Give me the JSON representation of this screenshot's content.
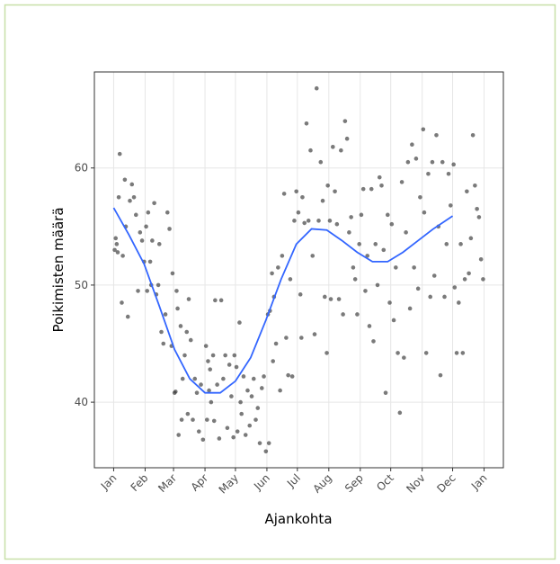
{
  "chart_data": {
    "type": "scatter",
    "x_label": "Ajankohta",
    "y_label": "Poikimisten määrä",
    "xlim": [
      -19,
      384
    ],
    "ylim": [
      34.4,
      68.2
    ],
    "xticks": [
      {
        "value": 0,
        "label": "Jan"
      },
      {
        "value": 31,
        "label": "Feb"
      },
      {
        "value": 59,
        "label": "Mar"
      },
      {
        "value": 90,
        "label": "Apr"
      },
      {
        "value": 120,
        "label": "May"
      },
      {
        "value": 151,
        "label": "Jun"
      },
      {
        "value": 181,
        "label": "Jul"
      },
      {
        "value": 212,
        "label": "Aug"
      },
      {
        "value": 243,
        "label": "Sep"
      },
      {
        "value": 273,
        "label": "Oct"
      },
      {
        "value": 304,
        "label": "Nov"
      },
      {
        "value": 334,
        "label": "Dec"
      },
      {
        "value": 365,
        "label": "Jan"
      }
    ],
    "yticks": [
      40,
      50,
      60
    ],
    "grid": true,
    "points": {
      "color": "#333333",
      "x": [
        1,
        2,
        3,
        4,
        5,
        6,
        8,
        9,
        11,
        12,
        14,
        16,
        18,
        20,
        22,
        24,
        26,
        28,
        30,
        32,
        33,
        34,
        36,
        37,
        38,
        40,
        42,
        44,
        45,
        47,
        49,
        51,
        53,
        55,
        57,
        58,
        60,
        61,
        62,
        63,
        64,
        66,
        67,
        68,
        70,
        72,
        73,
        74,
        76,
        78,
        80,
        82,
        84,
        86,
        88,
        91,
        92,
        93,
        94,
        95,
        96,
        98,
        99,
        100,
        102,
        104,
        106,
        108,
        110,
        112,
        114,
        116,
        118,
        119,
        121,
        122,
        124,
        125,
        126,
        128,
        130,
        132,
        134,
        136,
        138,
        140,
        142,
        144,
        146,
        148,
        150,
        152,
        153,
        154,
        156,
        157,
        158,
        160,
        162,
        164,
        166,
        168,
        170,
        172,
        174,
        176,
        178,
        180,
        182,
        184,
        185,
        186,
        188,
        190,
        192,
        194,
        196,
        198,
        200,
        202,
        204,
        206,
        208,
        210,
        211,
        213,
        214,
        216,
        218,
        220,
        222,
        224,
        226,
        228,
        230,
        232,
        234,
        236,
        238,
        240,
        242,
        244,
        246,
        248,
        250,
        252,
        254,
        256,
        258,
        260,
        262,
        264,
        266,
        268,
        270,
        272,
        274,
        276,
        278,
        280,
        282,
        284,
        286,
        288,
        290,
        292,
        294,
        296,
        298,
        300,
        302,
        305,
        306,
        308,
        310,
        312,
        314,
        316,
        318,
        320,
        322,
        324,
        326,
        328,
        330,
        332,
        335,
        336,
        338,
        340,
        342,
        344,
        346,
        348,
        350,
        352,
        354,
        356,
        358,
        360,
        362,
        364
      ],
      "y": [
        53,
        54,
        53.5,
        52.8,
        57.5,
        61.2,
        48.5,
        52.5,
        59,
        55,
        47.3,
        57.2,
        58.6,
        57.5,
        56,
        49.5,
        54.5,
        53.8,
        52,
        55,
        49.5,
        56.2,
        52,
        50,
        53.8,
        57,
        49.2,
        50,
        53.5,
        46,
        45,
        47.5,
        56.2,
        54.8,
        44.8,
        51,
        40.8,
        40.9,
        49.5,
        48,
        37.2,
        46.5,
        38.5,
        42,
        44,
        46,
        39,
        48.8,
        45.3,
        38.5,
        42,
        40.8,
        37.5,
        41.5,
        36.8,
        44.8,
        38.5,
        43.5,
        41,
        42.8,
        40,
        44,
        38.4,
        48.7,
        41.5,
        36.9,
        48.7,
        42,
        44,
        37.8,
        43.2,
        40.5,
        37,
        44,
        43,
        37.5,
        46.8,
        40,
        39,
        42.2,
        37.2,
        41,
        38,
        40.5,
        42,
        38.5,
        39.5,
        36.5,
        41.2,
        42.2,
        35.8,
        47.5,
        36.5,
        47.8,
        51,
        43.5,
        49,
        45,
        51.5,
        41,
        52.5,
        57.8,
        45.5,
        42.3,
        50.5,
        42.2,
        55.5,
        58,
        56.2,
        49.2,
        45.5,
        57.5,
        55.3,
        63.8,
        55.5,
        61.5,
        52.5,
        45.8,
        66.8,
        55.5,
        60.5,
        57.2,
        49,
        44.2,
        58.5,
        55.5,
        48.8,
        61.8,
        58,
        55.2,
        48.8,
        61.5,
        47.5,
        64,
        62.5,
        54.5,
        55.8,
        51.5,
        50.5,
        47.5,
        53.5,
        56,
        58.2,
        49.5,
        52.5,
        46.5,
        58.2,
        45.2,
        53.5,
        50,
        59.2,
        58.5,
        53,
        40.8,
        56,
        48.5,
        55.2,
        47,
        51.5,
        44.2,
        39.1,
        58.8,
        43.8,
        54.5,
        60.5,
        48,
        62,
        51.5,
        60.8,
        49.7,
        57.5,
        63.3,
        56.2,
        44.2,
        59.5,
        49,
        60.5,
        50.8,
        62.8,
        55,
        42.3,
        60.5,
        49,
        53.5,
        59.5,
        56.8,
        60.3,
        49.8,
        44.2,
        48.5,
        53.5,
        44.2,
        50.5,
        58,
        51,
        54,
        62.8,
        58.5,
        56.5,
        55.8,
        52.2,
        50.5
      ]
    },
    "smooth": {
      "color": "#3366ff",
      "x": [
        0,
        15,
        30,
        45,
        60,
        75,
        90,
        105,
        120,
        135,
        150,
        165,
        180,
        195,
        210,
        225,
        240,
        255,
        270,
        285,
        300,
        315,
        334
      ],
      "y": [
        56.6,
        54.3,
        51.8,
        48.2,
        44.5,
        42.0,
        40.8,
        40.8,
        41.8,
        43.8,
        47.0,
        50.5,
        53.5,
        54.8,
        54.7,
        53.8,
        52.8,
        52.0,
        52.0,
        52.8,
        53.8,
        54.8,
        55.9
      ]
    }
  }
}
